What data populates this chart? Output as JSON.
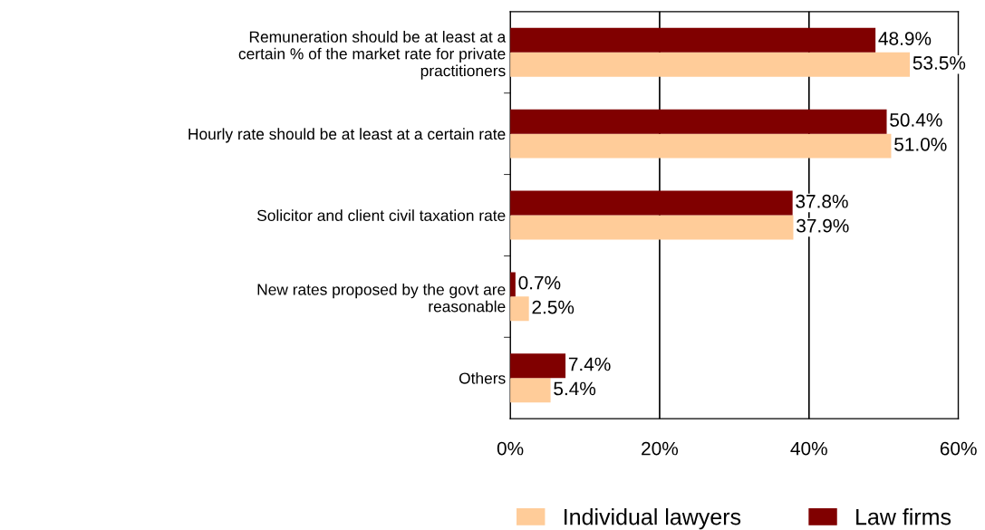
{
  "chart_data": {
    "type": "bar",
    "orientation": "horizontal",
    "categories": [
      "Remuneration should be at least at a\ncertain % of the market rate for private\npractitioners",
      "Hourly rate should be at least at a certain rate",
      "Solicitor and client civil taxation rate",
      "New rates proposed by the govt are\nreasonable",
      "Others"
    ],
    "series": [
      {
        "name": "Individual lawyers",
        "color": "#ffcc99",
        "values": [
          53.5,
          51.0,
          37.9,
          2.5,
          5.4
        ],
        "value_labels": [
          "53.5%",
          "51.0%",
          "37.9%",
          "2.5%",
          "5.4%"
        ]
      },
      {
        "name": "Law firms",
        "color": "#800000",
        "values": [
          48.9,
          50.4,
          37.8,
          0.7,
          7.4
        ],
        "value_labels": [
          "48.9%",
          "50.4%",
          "37.8%",
          "0.7%",
          "7.4%"
        ]
      }
    ],
    "xlim": [
      0,
      60
    ],
    "xticks": [
      {
        "value": 0,
        "label": "0%"
      },
      {
        "value": 20,
        "label": "20%"
      },
      {
        "value": 40,
        "label": "40%"
      },
      {
        "value": 60,
        "label": "60%"
      }
    ],
    "grid": "x",
    "legend": "bottom"
  }
}
